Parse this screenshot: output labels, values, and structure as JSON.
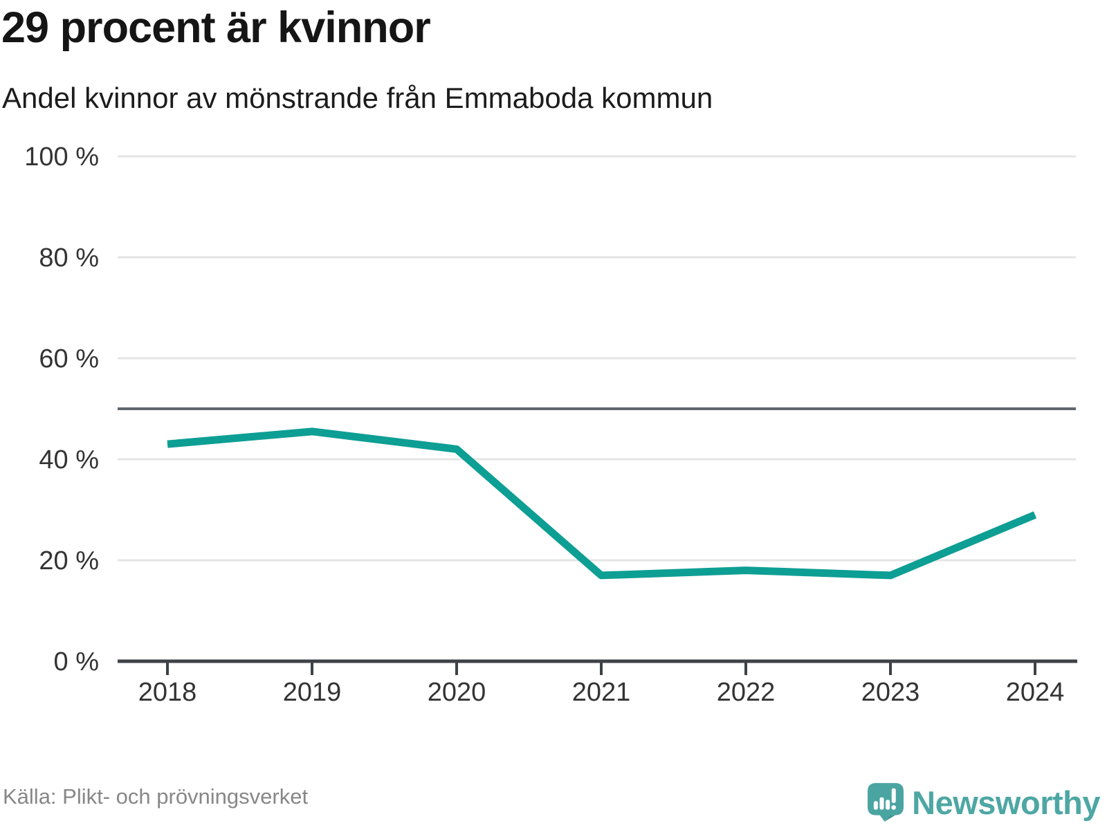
{
  "header": {
    "title": "29 procent är kvinnor",
    "subtitle": "Andel kvinnor av mönstrande från Emmaboda kommun"
  },
  "chart_data": {
    "type": "line",
    "title": "29 procent är kvinnor",
    "subtitle": "Andel kvinnor av mönstrande från Emmaboda kommun",
    "categories": [
      "2018",
      "2019",
      "2020",
      "2021",
      "2022",
      "2023",
      "2024"
    ],
    "series": [
      {
        "name": "Andel kvinnor av mönstrande",
        "values": [
          43,
          45.5,
          42,
          17,
          18,
          17,
          29
        ]
      }
    ],
    "ylim": [
      0,
      100
    ],
    "yticks": [
      0,
      20,
      40,
      60,
      80,
      100
    ],
    "ytick_labels": [
      "0 %",
      "20 %",
      "40 %",
      "60 %",
      "80 %",
      "100 %"
    ],
    "reference_line": 50,
    "grid": true,
    "legend": "none",
    "line_color": "#0d9e94",
    "grid_color": "#e4e4e4",
    "reference_line_color": "#60666d",
    "axis_color": "#3d4247",
    "tick_label_color": "#333333"
  },
  "footer": {
    "source": "Källa: Plikt- och prövningsverket",
    "brand": "Newsworthy",
    "brand_color": "#4da7a3"
  }
}
